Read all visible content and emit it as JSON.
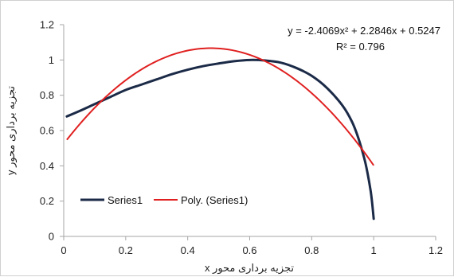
{
  "chart_data": {
    "type": "line",
    "title": "",
    "xlabel": "تجزیه برداری محور  x",
    "ylabel": "تجزیه برداری محور  y",
    "xlim": [
      0,
      1.2
    ],
    "ylim": [
      0,
      1.2
    ],
    "x_ticks": [
      "0",
      "0.2",
      "0.4",
      "0.6",
      "0.8",
      "1",
      "1.2"
    ],
    "y_ticks": [
      "0",
      "0.2",
      "0.4",
      "0.6",
      "0.8",
      "1",
      "1.2"
    ],
    "grid": false,
    "legend_position": "bottom-left",
    "series": [
      {
        "name": "Series1",
        "color": "#1b2a47",
        "x": [
          0.01,
          0.05,
          0.1,
          0.15,
          0.2,
          0.25,
          0.3,
          0.35,
          0.4,
          0.45,
          0.5,
          0.55,
          0.6,
          0.65,
          0.7,
          0.75,
          0.8,
          0.85,
          0.9,
          0.93,
          0.95,
          0.97,
          0.98,
          0.99,
          0.995,
          1.0
        ],
        "y": [
          0.68,
          0.71,
          0.75,
          0.79,
          0.83,
          0.86,
          0.89,
          0.92,
          0.945,
          0.965,
          0.98,
          0.993,
          1.0,
          0.997,
          0.985,
          0.955,
          0.91,
          0.84,
          0.74,
          0.65,
          0.56,
          0.44,
          0.36,
          0.26,
          0.19,
          0.1
        ]
      },
      {
        "name": "Poly. (Series1)",
        "color": "#e02020",
        "type": "polynomial-trendline",
        "coefficients": [
          -2.4069,
          2.2846,
          0.5247
        ],
        "x_range": [
          0.01,
          1.0
        ]
      }
    ],
    "annotations": {
      "equation": "y = -2.4069x² + 2.2846x + 0.5247",
      "r_squared": "R² = 0.796"
    }
  }
}
